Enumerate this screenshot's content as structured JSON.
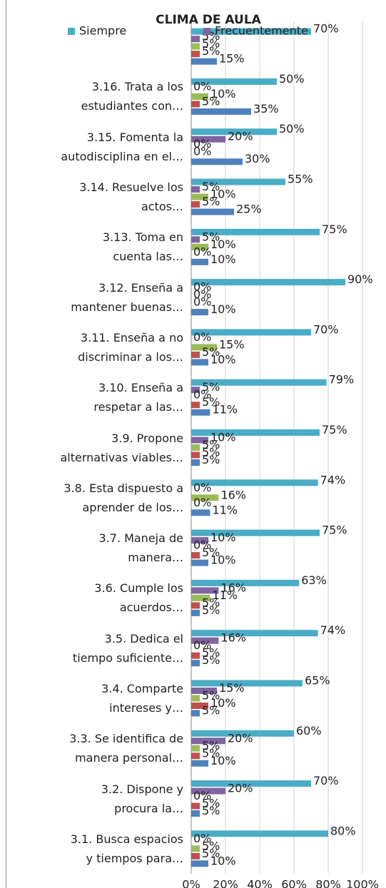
{
  "chart_data": {
    "type": "bar",
    "orientation": "horizontal",
    "title": "CLIMA DE AULA",
    "categories": [
      null,
      "3.16.   Trata a los\nestudiantes con…",
      "3.15.   Fomenta la\nautodisciplina en el…",
      "3.14.   Resuelve los\nactos…",
      "3.13.   Toma en\ncuenta las…",
      "3.12.   Enseña a\nmantener buenas…",
      "3.11.   Enseña a no\ndiscriminar a los…",
      "3.10.   Enseña a\nrespetar a las…",
      "3.9.  Propone\nalternativas viables…",
      "3.8.  Esta dispuesto a\naprender de los…",
      "3.7.  Maneja de\nmanera…",
      "3.6.  Cumple los\nacuerdos…",
      "3.5.  Dedica el\ntiempo suficiente…",
      "3.4.  Comparte\nintereses y…",
      "3.3.  Se identifica de\nmanera personal…",
      "3.2.  Dispone y\nprocura la…",
      "3.1.  Busca espacios\ny tiempos para…"
    ],
    "series": [
      {
        "name": "Siempre",
        "color": "#4bacc6",
        "values": [
          70,
          50,
          50,
          55,
          75,
          90,
          70,
          79,
          75,
          74,
          75,
          63,
          74,
          65,
          60,
          70,
          80
        ],
        "value_labels": [
          "70%",
          "50%",
          "50%",
          "55%",
          "75%",
          "90%",
          "70%",
          "79%",
          "75%",
          "74%",
          "75%",
          "63%",
          "74%",
          "65%",
          "60%",
          "70%",
          "80%"
        ]
      },
      {
        "name": "Frecuentemente",
        "color": "#8064a2",
        "values": [
          5,
          0,
          20,
          5,
          5,
          0,
          0,
          5,
          10,
          0,
          10,
          16,
          16,
          15,
          20,
          20,
          0
        ],
        "value_labels": [
          "5%",
          "0%",
          "20%",
          "5%",
          "5%",
          "0%",
          "0%",
          "5%",
          "10%",
          "0%",
          "10%",
          "16%",
          "16%",
          "15%",
          "20%",
          "20%",
          "0%"
        ]
      },
      {
        "color": "#9bbb59",
        "values": [
          5,
          10,
          0,
          10,
          10,
          0,
          15,
          0,
          5,
          16,
          0,
          11,
          0,
          5,
          5,
          0,
          5
        ],
        "value_labels": [
          "5%",
          "10%",
          "0%",
          "10%",
          "10%",
          "0%",
          "15%",
          "0%",
          "5%",
          "16%",
          "0%",
          "11%",
          "0%",
          "5%",
          "5%",
          "0%",
          "5%"
        ]
      },
      {
        "color": "#c0504d",
        "values": [
          5,
          5,
          0,
          5,
          0,
          0,
          5,
          5,
          5,
          0,
          5,
          5,
          5,
          10,
          5,
          5,
          5
        ],
        "value_labels": [
          "5%",
          "5%",
          "0%",
          "5%",
          "0%",
          "0%",
          "5%",
          "5%",
          "5%",
          "0%",
          "5%",
          "5%",
          "5%",
          "10%",
          "5%",
          "5%",
          "5%"
        ]
      },
      {
        "color": "#4f81bd",
        "values": [
          15,
          35,
          30,
          25,
          10,
          10,
          10,
          11,
          5,
          11,
          10,
          5,
          5,
          5,
          10,
          5,
          10
        ],
        "value_labels": [
          "15%",
          "35%",
          "30%",
          "25%",
          "10%",
          "10%",
          "10%",
          "11%",
          "5%",
          "11%",
          "10%",
          "5%",
          "5%",
          "5%",
          "10%",
          "5%",
          "10%"
        ]
      }
    ],
    "xlim": [
      0,
      100
    ],
    "xticks": [
      {
        "value": 0,
        "label": "0%"
      },
      {
        "value": 20,
        "label": "20%"
      },
      {
        "value": 40,
        "label": "40%"
      },
      {
        "value": 60,
        "label": "60%"
      },
      {
        "value": 80,
        "label": "80%"
      },
      {
        "value": 100,
        "label": "100%"
      }
    ],
    "grid": true
  }
}
